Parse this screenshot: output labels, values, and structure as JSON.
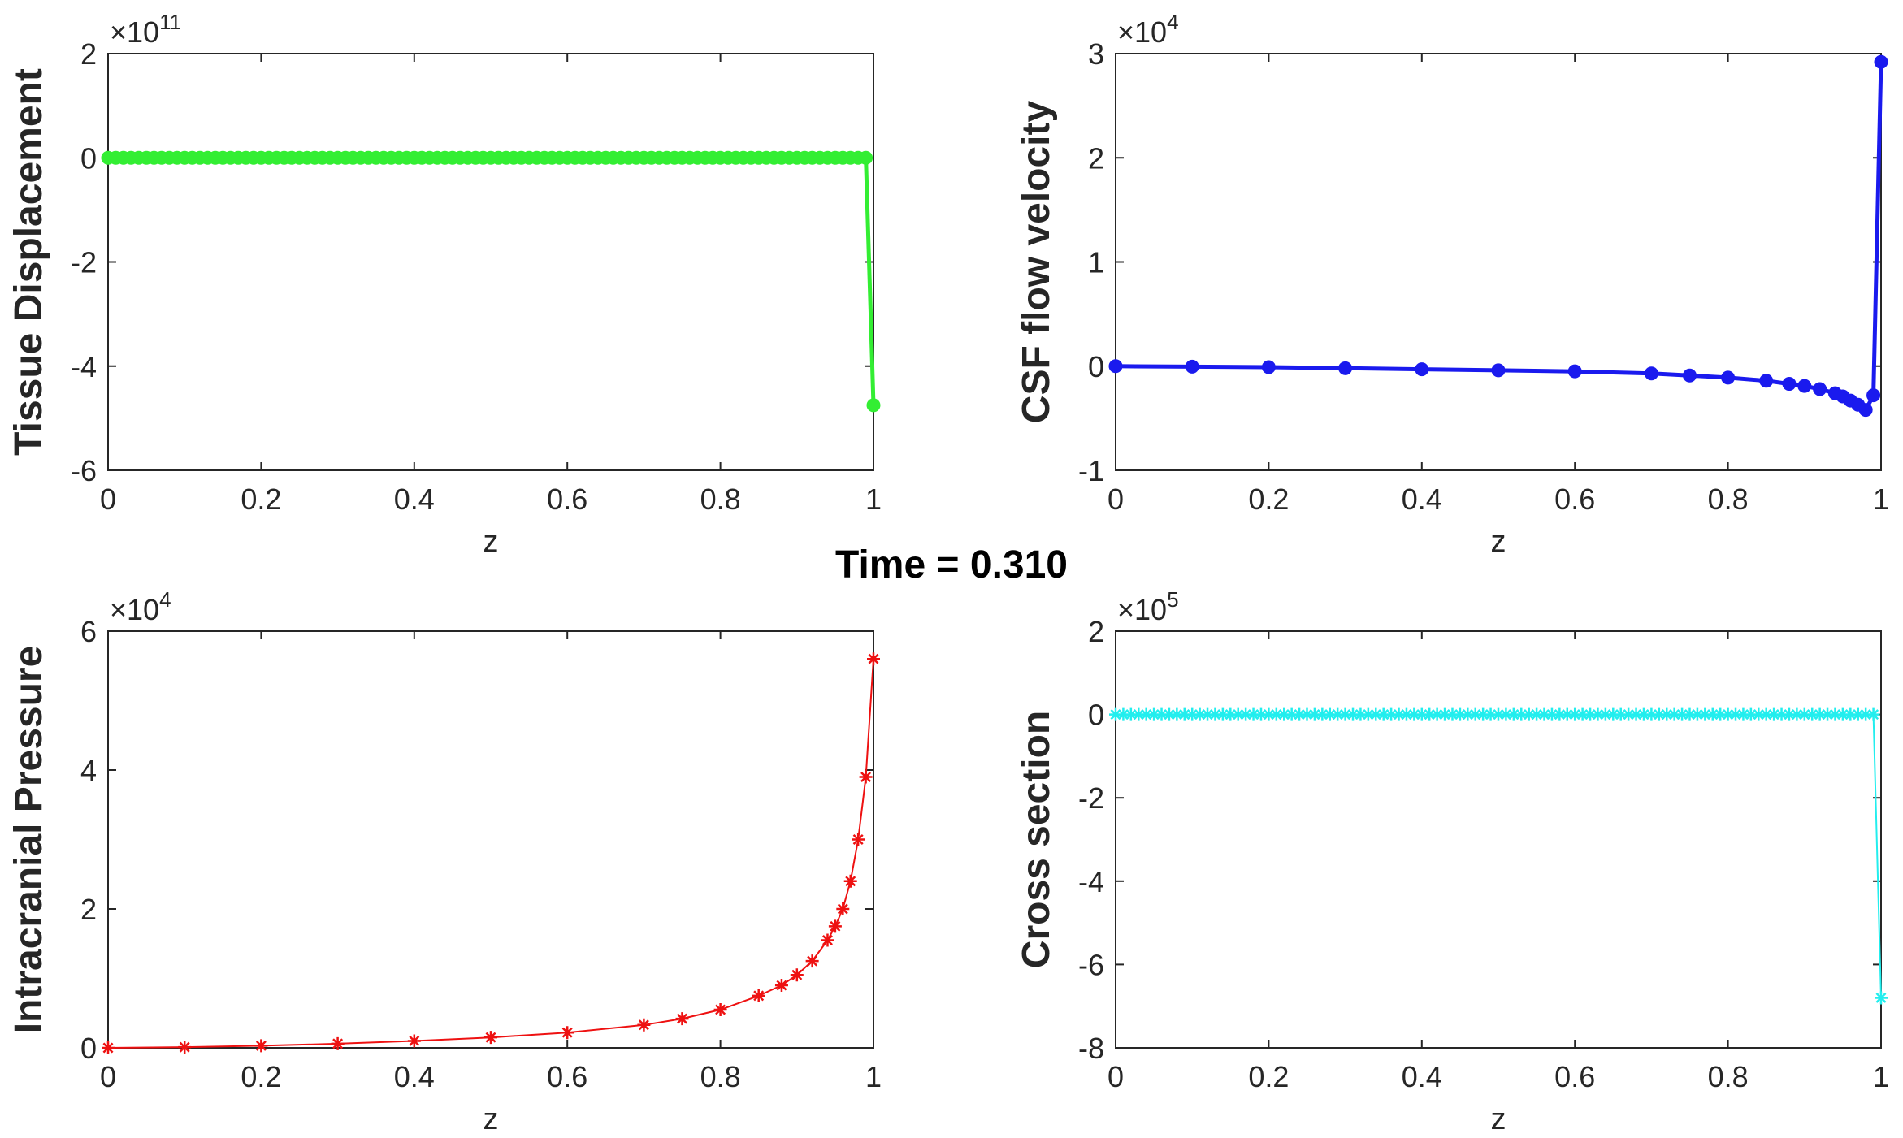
{
  "figure": {
    "suptitle": "Time = 0.310"
  },
  "chart_data": [
    {
      "type": "line",
      "panel": "top-left",
      "ylabel": "Tissue Displacement",
      "xlabel": "z",
      "exponent_label": "×10",
      "exponent": "11",
      "xlim": [
        0,
        1
      ],
      "ylim": [
        -6,
        2
      ],
      "xticks": [
        0,
        0.2,
        0.4,
        0.6,
        0.8,
        1
      ],
      "xtick_labels": [
        "0",
        "0.2",
        "0.4",
        "0.6",
        "0.8",
        "1"
      ],
      "yticks": [
        -6,
        -4,
        -2,
        0,
        2
      ],
      "ytick_labels": [
        "-6",
        "-4",
        "-2",
        "0",
        "2"
      ],
      "color": "#33ee33",
      "marker": "filled-circle",
      "line_width": 5,
      "series": [
        {
          "x_start": 0.0,
          "x_end": 0.99,
          "count": 100,
          "y_const": 0,
          "tail_x": [
            1.0
          ],
          "tail_y": [
            -4.75
          ]
        }
      ]
    },
    {
      "type": "line",
      "panel": "top-right",
      "ylabel": "CSF flow velocity",
      "xlabel": "z",
      "exponent_label": "×10",
      "exponent": "4",
      "xlim": [
        0,
        1
      ],
      "ylim": [
        -1,
        3
      ],
      "xticks": [
        0,
        0.2,
        0.4,
        0.6,
        0.8,
        1
      ],
      "xtick_labels": [
        "0",
        "0.2",
        "0.4",
        "0.6",
        "0.8",
        "1"
      ],
      "yticks": [
        -1,
        0,
        1,
        2,
        3
      ],
      "ytick_labels": [
        "-1",
        "0",
        "1",
        "2",
        "3"
      ],
      "color": "#1a1aee",
      "marker": "filled-circle",
      "line_width": 5,
      "series": [
        {
          "x": [
            0.0,
            0.1,
            0.2,
            0.3,
            0.4,
            0.5,
            0.6,
            0.7,
            0.75,
            0.8,
            0.85,
            0.88,
            0.9,
            0.92,
            0.94,
            0.95,
            0.96,
            0.97,
            0.98,
            0.99,
            1.0
          ],
          "y": [
            0.0,
            -0.005,
            -0.01,
            -0.02,
            -0.03,
            -0.04,
            -0.05,
            -0.07,
            -0.09,
            -0.11,
            -0.14,
            -0.17,
            -0.19,
            -0.22,
            -0.26,
            -0.29,
            -0.33,
            -0.37,
            -0.42,
            -0.28,
            2.92
          ]
        }
      ]
    },
    {
      "type": "line",
      "panel": "bottom-left",
      "ylabel": "Intracranial Pressure",
      "xlabel": "z",
      "exponent_label": "×10",
      "exponent": "4",
      "xlim": [
        0,
        1
      ],
      "ylim": [
        0,
        6
      ],
      "xticks": [
        0,
        0.2,
        0.4,
        0.6,
        0.8,
        1
      ],
      "xtick_labels": [
        "0",
        "0.2",
        "0.4",
        "0.6",
        "0.8",
        "1"
      ],
      "yticks": [
        0,
        2,
        4,
        6
      ],
      "ytick_labels": [
        "0",
        "2",
        "4",
        "6"
      ],
      "color": "#ee1111",
      "marker": "asterisk",
      "line_width": 2,
      "series": [
        {
          "x": [
            0.0,
            0.1,
            0.2,
            0.3,
            0.4,
            0.5,
            0.6,
            0.7,
            0.75,
            0.8,
            0.85,
            0.88,
            0.9,
            0.92,
            0.94,
            0.95,
            0.96,
            0.97,
            0.98,
            0.99,
            1.0
          ],
          "y": [
            0.0,
            0.01,
            0.03,
            0.06,
            0.1,
            0.15,
            0.22,
            0.33,
            0.42,
            0.55,
            0.75,
            0.9,
            1.05,
            1.25,
            1.55,
            1.75,
            2.0,
            2.4,
            3.0,
            3.9,
            5.6
          ]
        }
      ]
    },
    {
      "type": "line",
      "panel": "bottom-right",
      "ylabel": "Cross section",
      "xlabel": "z",
      "exponent_label": "×10",
      "exponent": "5",
      "xlim": [
        0,
        1
      ],
      "ylim": [
        -8,
        2
      ],
      "xticks": [
        0,
        0.2,
        0.4,
        0.6,
        0.8,
        1
      ],
      "xtick_labels": [
        "0",
        "0.2",
        "0.4",
        "0.6",
        "0.8",
        "1"
      ],
      "yticks": [
        -8,
        -6,
        -4,
        -2,
        0,
        2
      ],
      "ytick_labels": [
        "-8",
        "-6",
        "-4",
        "-2",
        "0",
        "2"
      ],
      "color": "#22eeee",
      "marker": "asterisk",
      "line_width": 2,
      "series": [
        {
          "x_start": 0.0,
          "x_end": 0.99,
          "count": 100,
          "y_const": 0,
          "tail_x": [
            1.0
          ],
          "tail_y": [
            -6.8
          ]
        }
      ]
    }
  ]
}
